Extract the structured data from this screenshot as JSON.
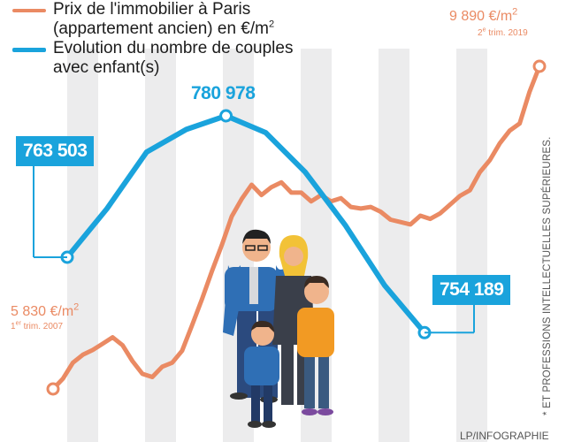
{
  "legend": {
    "price_label_line1": "Prix de l'immobilier à Paris",
    "price_label_line2": "(appartement ancien) en €/m",
    "price_label_sup": "2",
    "couples_label_line1": "Evolution du nombre de couples",
    "couples_label_line2": "avec enfant(s)",
    "price_color": "#ea8a63",
    "couples_color": "#1aa3dc"
  },
  "annotations": {
    "price_start_value": "5 830 €/m",
    "price_start_value_sup": "2",
    "price_start_date_prefix": "1",
    "price_start_date_sup": "er",
    "price_start_date_suffix": " trim. 2007",
    "price_end_value": "9 890 €/m",
    "price_end_value_sup": "2",
    "price_end_date_prefix": "2",
    "price_end_date_sup": "e",
    "price_end_date_suffix": " trim. 2019",
    "couples_start": "763 503",
    "couples_peak": "780 978",
    "couples_end": "754 189"
  },
  "side_note": "* ET PROFESSIONS INTELLECTUELLES SUPÉRIEURES.",
  "credit": "LP/INFOGRAPHIE",
  "illustration": "family-illustration",
  "chart_data": [
    {
      "type": "line",
      "name": "Prix de l'immobilier à Paris (appartement ancien) en €/m²",
      "unit": "€/m²",
      "x": [
        2007.0,
        2007.25,
        2007.5,
        2007.75,
        2008.0,
        2008.25,
        2008.5,
        2008.75,
        2009.0,
        2009.25,
        2009.5,
        2009.75,
        2010.0,
        2010.25,
        2010.5,
        2010.75,
        2011.0,
        2011.25,
        2011.5,
        2011.75,
        2012.0,
        2012.25,
        2012.5,
        2012.75,
        2013.0,
        2013.25,
        2013.5,
        2013.75,
        2014.0,
        2014.25,
        2014.5,
        2014.75,
        2015.0,
        2015.25,
        2015.5,
        2015.75,
        2016.0,
        2016.25,
        2016.5,
        2016.75,
        2017.0,
        2017.25,
        2017.5,
        2017.75,
        2018.0,
        2018.25,
        2018.5,
        2018.75,
        2019.0,
        2019.25
      ],
      "y": [
        5830,
        5960,
        6160,
        6260,
        6320,
        6400,
        6480,
        6380,
        6180,
        6020,
        5980,
        6110,
        6160,
        6310,
        6630,
        6960,
        7310,
        7640,
        8000,
        8220,
        8400,
        8270,
        8370,
        8430,
        8300,
        8300,
        8190,
        8270,
        8190,
        8230,
        8120,
        8100,
        8120,
        8060,
        7960,
        7930,
        7900,
        8010,
        7970,
        8040,
        8150,
        8260,
        8330,
        8560,
        8710,
        8920,
        9080,
        9170,
        9570,
        9890
      ],
      "labels": [
        {
          "x": 2007.0,
          "text": "5 830 €/m²"
        },
        {
          "x": 2019.25,
          "text": "9 890 €/m²"
        }
      ]
    },
    {
      "type": "line",
      "name": "Evolution du nombre de couples avec enfant(s)",
      "x": [
        2007,
        2008,
        2009,
        2010,
        2011,
        2012,
        2013,
        2014,
        2015,
        2016
      ],
      "y": [
        763503,
        769500,
        776500,
        779300,
        780978,
        778900,
        774000,
        767500,
        760000,
        754189
      ],
      "labels": [
        {
          "x": 2007,
          "text": "763 503"
        },
        {
          "x": 2011,
          "text": "780 978"
        },
        {
          "x": 2016,
          "text": "754 189"
        }
      ]
    }
  ]
}
